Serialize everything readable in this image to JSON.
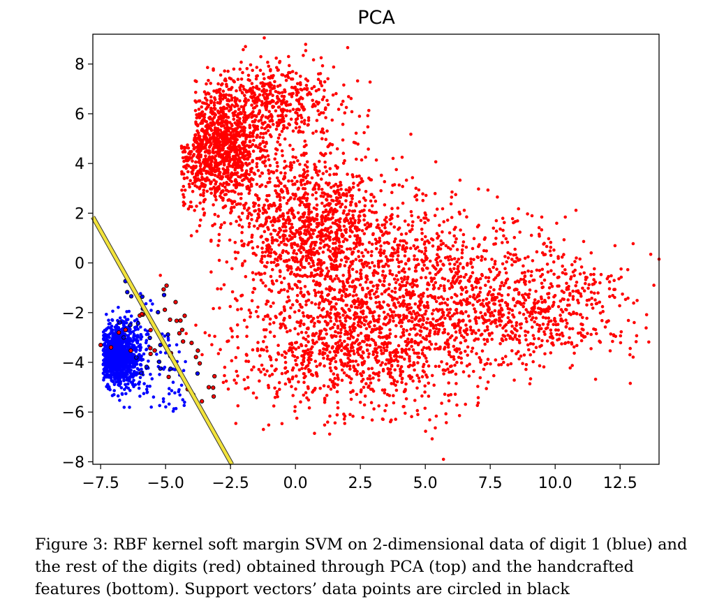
{
  "chart_data": {
    "type": "scatter",
    "title": "PCA",
    "xlabel": "",
    "ylabel": "",
    "xlim": [
      -7.8,
      14.0
    ],
    "ylim": [
      -8.1,
      9.2
    ],
    "xticks": [
      -7.5,
      -5.0,
      -2.5,
      0.0,
      2.5,
      5.0,
      7.5,
      10.0,
      12.5
    ],
    "xtick_labels": [
      "−7.5",
      "−5.0",
      "−2.5",
      "0.0",
      "2.5",
      "5.0",
      "7.5",
      "10.0",
      "12.5"
    ],
    "yticks": [
      -8,
      -6,
      -4,
      -2,
      0,
      2,
      4,
      6,
      8
    ],
    "ytick_labels": [
      "−8",
      "−6",
      "−4",
      "−2",
      "0",
      "2",
      "4",
      "6",
      "8"
    ],
    "grid": false,
    "legend": "none",
    "decision_boundary": {
      "color": "#f2e33c",
      "edge_color": "#333333",
      "points": [
        [
          -7.8,
          1.85
        ],
        [
          -2.45,
          -8.1
        ]
      ]
    },
    "series": [
      {
        "color": "#0000ff",
        "center": [
          -6.9,
          -3.7
        ],
        "spread": [
          0.45,
          0.6
        ],
        "count": 1100,
        "x_range": [
          -7.4,
          -4.0
        ],
        "y_range": [
          -6.1,
          -0.1
        ]
      },
      {
        "color": "#ff0000",
        "count": 5200,
        "x_range": [
          -5.6,
          14.0
        ],
        "y_range": [
          -8.0,
          9.1
        ],
        "extreme_points": [
          [
            -1.2,
            9.05
          ],
          [
            14.0,
            0.15
          ],
          [
            5.7,
            -7.9
          ],
          [
            13.8,
            -0.9
          ],
          [
            -5.2,
            -0.5
          ]
        ]
      }
    ],
    "support_vectors": {
      "edge_color": "#000000",
      "count": 55,
      "x_range": [
        -6.8,
        -2.6
      ],
      "y_range": [
        -5.6,
        -0.6
      ]
    }
  },
  "caption": "Figure 3: RBF kernel soft margin SVM on 2-dimensional data of digit 1 (blue) and the rest of the digits (red) obtained through PCA (top) and the handcrafted features (bottom). Support vectors’ data points are circled in black"
}
